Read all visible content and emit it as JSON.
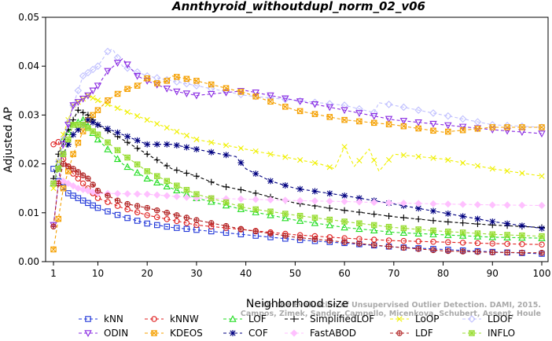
{
  "chart_data": {
    "type": "line",
    "title": "Annthyroid_withoutdupl_norm_02_v06",
    "xlabel": "Neighborhood size",
    "ylabel": "Adjusted AP",
    "xlim": [
      1,
      100
    ],
    "ylim": [
      0,
      0.05
    ],
    "x_ticks": [
      1,
      10,
      20,
      30,
      40,
      50,
      60,
      70,
      80,
      90,
      100
    ],
    "y_ticks": [
      "0.00",
      "0.01",
      "0.02",
      "0.03",
      "0.04",
      "0.05"
    ],
    "grid": false,
    "legend_position": "bottom",
    "watermark": [
      "Campos, Zimek, Sander, Campello, Micenkova, Schubert, Assent, Houle",
      "On the Evaluation of Unsupervised Outlier Detection. DAMI, 2015."
    ],
    "series": [
      {
        "name": "kNN",
        "color": "#1f35d8",
        "marker": "square",
        "dash": "4,3",
        "points": [
          [
            1,
            0.019
          ],
          [
            2,
            0.0165
          ],
          [
            4,
            0.014
          ],
          [
            6,
            0.013
          ],
          [
            10,
            0.011
          ],
          [
            15,
            0.0092
          ],
          [
            20,
            0.0078
          ],
          [
            25,
            0.007
          ],
          [
            30,
            0.0065
          ],
          [
            40,
            0.0055
          ],
          [
            50,
            0.0045
          ],
          [
            60,
            0.0038
          ],
          [
            70,
            0.003
          ],
          [
            80,
            0.0025
          ],
          [
            90,
            0.002
          ],
          [
            100,
            0.0016
          ]
        ]
      },
      {
        "name": "kNNW",
        "color": "#e02020",
        "marker": "circle",
        "dash": "4,3",
        "points": [
          [
            1,
            0.024
          ],
          [
            2,
            0.0245
          ],
          [
            3,
            0.021
          ],
          [
            5,
            0.018
          ],
          [
            8,
            0.015
          ],
          [
            10,
            0.013
          ],
          [
            15,
            0.011
          ],
          [
            20,
            0.0095
          ],
          [
            25,
            0.0085
          ],
          [
            30,
            0.0075
          ],
          [
            40,
            0.0065
          ],
          [
            50,
            0.0055
          ],
          [
            60,
            0.0048
          ],
          [
            70,
            0.0043
          ],
          [
            80,
            0.004
          ],
          [
            90,
            0.0037
          ],
          [
            100,
            0.0035
          ]
        ]
      },
      {
        "name": "LOF",
        "color": "#22dd22",
        "marker": "triangle",
        "dash": "4,3",
        "points": [
          [
            1,
            0.016
          ],
          [
            2,
            0.02
          ],
          [
            3,
            0.025
          ],
          [
            5,
            0.028
          ],
          [
            7,
            0.029
          ],
          [
            10,
            0.025
          ],
          [
            15,
            0.02
          ],
          [
            20,
            0.017
          ],
          [
            25,
            0.015
          ],
          [
            30,
            0.013
          ],
          [
            40,
            0.0105
          ],
          [
            50,
            0.0085
          ],
          [
            60,
            0.007
          ],
          [
            70,
            0.006
          ],
          [
            80,
            0.0055
          ],
          [
            90,
            0.005
          ],
          [
            100,
            0.0048
          ]
        ]
      },
      {
        "name": "SimplifiedLOF",
        "color": "#000000",
        "marker": "plus",
        "dash": "4,3",
        "points": [
          [
            1,
            0.017
          ],
          [
            2,
            0.022
          ],
          [
            4,
            0.027
          ],
          [
            6,
            0.031
          ],
          [
            8,
            0.03
          ],
          [
            10,
            0.028
          ],
          [
            15,
            0.025
          ],
          [
            20,
            0.022
          ],
          [
            25,
            0.019
          ],
          [
            30,
            0.0175
          ],
          [
            35,
            0.0155
          ],
          [
            40,
            0.0145
          ],
          [
            50,
            0.012
          ],
          [
            60,
            0.0105
          ],
          [
            70,
            0.0092
          ],
          [
            80,
            0.0082
          ],
          [
            90,
            0.0075
          ],
          [
            100,
            0.007
          ]
        ]
      },
      {
        "name": "LoOP",
        "color": "#f0f000",
        "marker": "x",
        "dash": "4,3",
        "points": [
          [
            1,
            0.015
          ],
          [
            3,
            0.026
          ],
          [
            5,
            0.032
          ],
          [
            8,
            0.034
          ],
          [
            10,
            0.033
          ],
          [
            15,
            0.031
          ],
          [
            20,
            0.029
          ],
          [
            30,
            0.025
          ],
          [
            40,
            0.023
          ],
          [
            50,
            0.021
          ],
          [
            55,
            0.02
          ],
          [
            58,
            0.019
          ],
          [
            60,
            0.0235
          ],
          [
            62,
            0.0195
          ],
          [
            65,
            0.023
          ],
          [
            67,
            0.0185
          ],
          [
            70,
            0.022
          ],
          [
            80,
            0.021
          ],
          [
            90,
            0.019
          ],
          [
            100,
            0.0175
          ]
        ]
      },
      {
        "name": "LDOF",
        "color": "#c0c0ff",
        "marker": "diamond",
        "dash": "4,3",
        "points": [
          [
            1,
            0.016
          ],
          [
            3,
            0.025
          ],
          [
            5,
            0.032
          ],
          [
            7,
            0.038
          ],
          [
            10,
            0.04
          ],
          [
            12,
            0.043
          ],
          [
            13,
            0.0435
          ],
          [
            15,
            0.04
          ],
          [
            20,
            0.038
          ],
          [
            30,
            0.036
          ],
          [
            40,
            0.034
          ],
          [
            50,
            0.033
          ],
          [
            60,
            0.032
          ],
          [
            66,
            0.0305
          ],
          [
            67,
            0.0325
          ],
          [
            70,
            0.032
          ],
          [
            80,
            0.03
          ],
          [
            90,
            0.028
          ],
          [
            100,
            0.0275
          ]
        ]
      },
      {
        "name": "ODIN",
        "color": "#8a2be2",
        "marker": "triangle-down",
        "dash": "4,3",
        "points": [
          [
            1,
            0.0075
          ],
          [
            2,
            0.016
          ],
          [
            3,
            0.024
          ],
          [
            5,
            0.032
          ],
          [
            8,
            0.034
          ],
          [
            10,
            0.036
          ],
          [
            12,
            0.039
          ],
          [
            15,
            0.0415
          ],
          [
            18,
            0.038
          ],
          [
            20,
            0.037
          ],
          [
            25,
            0.035
          ],
          [
            30,
            0.034
          ],
          [
            40,
            0.035
          ],
          [
            50,
            0.033
          ],
          [
            60,
            0.031
          ],
          [
            70,
            0.029
          ],
          [
            80,
            0.028
          ],
          [
            90,
            0.027
          ],
          [
            100,
            0.0262
          ]
        ]
      },
      {
        "name": "KDEOS",
        "color": "#f5a000",
        "marker": "square-x",
        "dash": "4,3",
        "points": [
          [
            1,
            0.0025
          ],
          [
            3,
            0.015
          ],
          [
            5,
            0.022
          ],
          [
            8,
            0.029
          ],
          [
            12,
            0.033
          ],
          [
            15,
            0.035
          ],
          [
            18,
            0.036
          ],
          [
            20,
            0.0375
          ],
          [
            22,
            0.0365
          ],
          [
            24,
            0.037
          ],
          [
            25,
            0.038
          ],
          [
            30,
            0.037
          ],
          [
            40,
            0.0345
          ],
          [
            50,
            0.031
          ],
          [
            60,
            0.029
          ],
          [
            70,
            0.028
          ],
          [
            80,
            0.0265
          ],
          [
            90,
            0.0275
          ],
          [
            100,
            0.0275
          ]
        ]
      },
      {
        "name": "COF",
        "color": "#000080",
        "marker": "star",
        "dash": "4,3",
        "points": [
          [
            1,
            0.016
          ],
          [
            3,
            0.022
          ],
          [
            5,
            0.026
          ],
          [
            8,
            0.029
          ],
          [
            10,
            0.028
          ],
          [
            15,
            0.026
          ],
          [
            20,
            0.024
          ],
          [
            25,
            0.024
          ],
          [
            30,
            0.023
          ],
          [
            35,
            0.022
          ],
          [
            38,
            0.0215
          ],
          [
            40,
            0.019
          ],
          [
            45,
            0.0165
          ],
          [
            50,
            0.015
          ],
          [
            60,
            0.0135
          ],
          [
            70,
            0.0118
          ],
          [
            80,
            0.01
          ],
          [
            90,
            0.0082
          ],
          [
            100,
            0.0068
          ]
        ]
      },
      {
        "name": "FastABOD",
        "color": "#ffc0ff",
        "marker": "diamond-filled",
        "dash": "4,3",
        "points": [
          [
            1,
            0.016
          ],
          [
            3,
            0.0165
          ],
          [
            6,
            0.015
          ],
          [
            10,
            0.014
          ],
          [
            20,
            0.0138
          ],
          [
            30,
            0.013
          ],
          [
            40,
            0.0128
          ],
          [
            50,
            0.0125
          ],
          [
            60,
            0.0123
          ],
          [
            70,
            0.012
          ],
          [
            80,
            0.0118
          ],
          [
            90,
            0.0116
          ],
          [
            100,
            0.0115
          ]
        ]
      },
      {
        "name": "LDF",
        "color": "#b02020",
        "marker": "circle-plus",
        "dash": "4,3",
        "points": [
          [
            1,
            0.0072
          ],
          [
            2,
            0.016
          ],
          [
            3,
            0.02
          ],
          [
            5,
            0.019
          ],
          [
            8,
            0.017
          ],
          [
            10,
            0.0145
          ],
          [
            15,
            0.012
          ],
          [
            20,
            0.011
          ],
          [
            30,
            0.0085
          ],
          [
            40,
            0.0065
          ],
          [
            50,
            0.005
          ],
          [
            60,
            0.004
          ],
          [
            70,
            0.003
          ],
          [
            80,
            0.0022
          ],
          [
            90,
            0.0019
          ],
          [
            100,
            0.0018
          ]
        ]
      },
      {
        "name": "INFLO",
        "color": "#99dd33",
        "marker": "square-star",
        "dash": "4,3",
        "points": [
          [
            1,
            0.016
          ],
          [
            3,
            0.022
          ],
          [
            5,
            0.028
          ],
          [
            7,
            0.028
          ],
          [
            10,
            0.026
          ],
          [
            15,
            0.022
          ],
          [
            20,
            0.0185
          ],
          [
            25,
            0.016
          ],
          [
            30,
            0.0138
          ],
          [
            40,
            0.011
          ],
          [
            50,
            0.0095
          ],
          [
            60,
            0.0082
          ],
          [
            70,
            0.007
          ],
          [
            80,
            0.0062
          ],
          [
            90,
            0.0056
          ],
          [
            100,
            0.0052
          ]
        ]
      }
    ]
  }
}
